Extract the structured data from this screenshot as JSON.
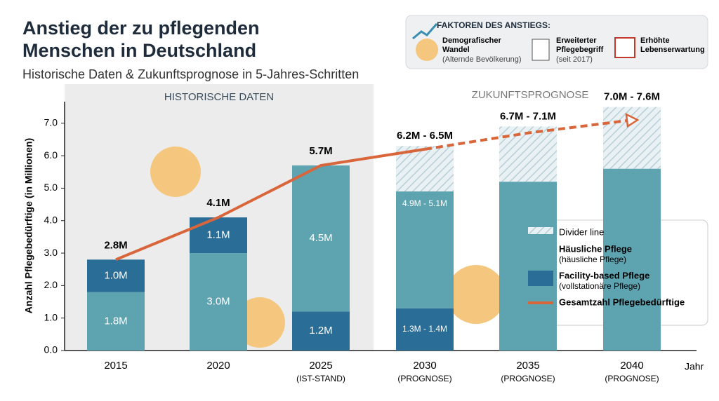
{
  "header": {
    "title_lines": [
      "Anstieg der zu pflegenden",
      "Menschen in Deutschland"
    ],
    "subtitle": "Historische Daten & Zukunftsprognose in 5-Jahres-Schritten"
  },
  "factors": {
    "heading": "FAKTOREN DES ANSTIEGS:",
    "items": [
      {
        "title_lines": [
          "Demografischer",
          "Wandel"
        ],
        "note": "(Alternde Bevölkerung)"
      },
      {
        "title_lines": [
          "Erweiterter",
          "Pflegebegriff"
        ],
        "note": "(seit 2017)"
      },
      {
        "title_lines": [
          "Erhöhte",
          "Lebenserwartung"
        ]
      }
    ]
  },
  "chart_data": {
    "type": "bar",
    "sections": [
      "HISTORISCHE DATEN",
      "ZUKUNFTSPROGNOSE"
    ],
    "y_label": "Anzahl Pflegebedürftige (in Millionen)",
    "x_label": "Jahr",
    "categories": [
      "2015",
      "2020",
      "2025",
      "2030",
      "2035",
      "2040"
    ],
    "category_notes": [
      null,
      null,
      "(IST-STAND)",
      "(PROGNOSE)",
      "(PROGNOSE)",
      "(PROGNOSE)"
    ],
    "ylim": [
      0,
      7.6
    ],
    "yticks": [
      {
        "value": 0,
        "label": "0.0"
      },
      {
        "value": 1,
        "label": "1.0"
      },
      {
        "value": 2,
        "label": "2.0"
      },
      {
        "value": 3,
        "label": "3.0"
      },
      {
        "value": 4,
        "label": "4.0"
      },
      {
        "value": 5,
        "label": "5.0"
      },
      {
        "value": 6,
        "label": "6.0"
      },
      {
        "value": 7,
        "label": "7.0"
      }
    ],
    "series": [
      {
        "name": "Divider line",
        "color": "#c9dde3",
        "values": [
          null,
          null,
          null,
          1.4,
          1.7,
          1.9
        ]
      },
      {
        "name": "Häusliche Pflege",
        "note": "(häusliche Pflege)",
        "color": "#5ea3b0",
        "values": [
          1.8,
          3.0,
          4.5,
          3.6,
          5.2,
          5.6
        ],
        "value_labels": [
          "1.8M",
          "3.0M",
          "4.5M",
          null,
          null,
          null
        ]
      },
      {
        "name": "Facility-based Pflege",
        "note": "(vollstationäre Pflege)",
        "color": "#2a6d96",
        "values": [
          1.0,
          1.1,
          1.2,
          1.3,
          null,
          null
        ],
        "value_labels": [
          "1.0M",
          "1.1M",
          "1.2M",
          null,
          null,
          null
        ]
      },
      {
        "name": "Gesamtzahl Pflegebedürftige",
        "type": "line",
        "color": "#d9653a",
        "values": [
          2.8,
          4.1,
          5.7,
          6.2,
          6.7,
          7.1
        ],
        "value_labels": [
          "2.8M",
          "4.1M",
          "5.7M",
          null,
          null,
          null
        ]
      }
    ],
    "bar_ranges": {
      "Häusliche Pflege": [
        null,
        null,
        null,
        "4.9M - 5.1M",
        null,
        null
      ],
      "Facility-based Pflege": [
        null,
        null,
        null,
        "1.3M - 1.4M",
        null,
        null
      ]
    },
    "total_ranges": [
      null,
      null,
      null,
      "6.2M - 6.5M",
      "6.7M - 7.1M",
      "7.0M - 7.6M"
    ]
  }
}
